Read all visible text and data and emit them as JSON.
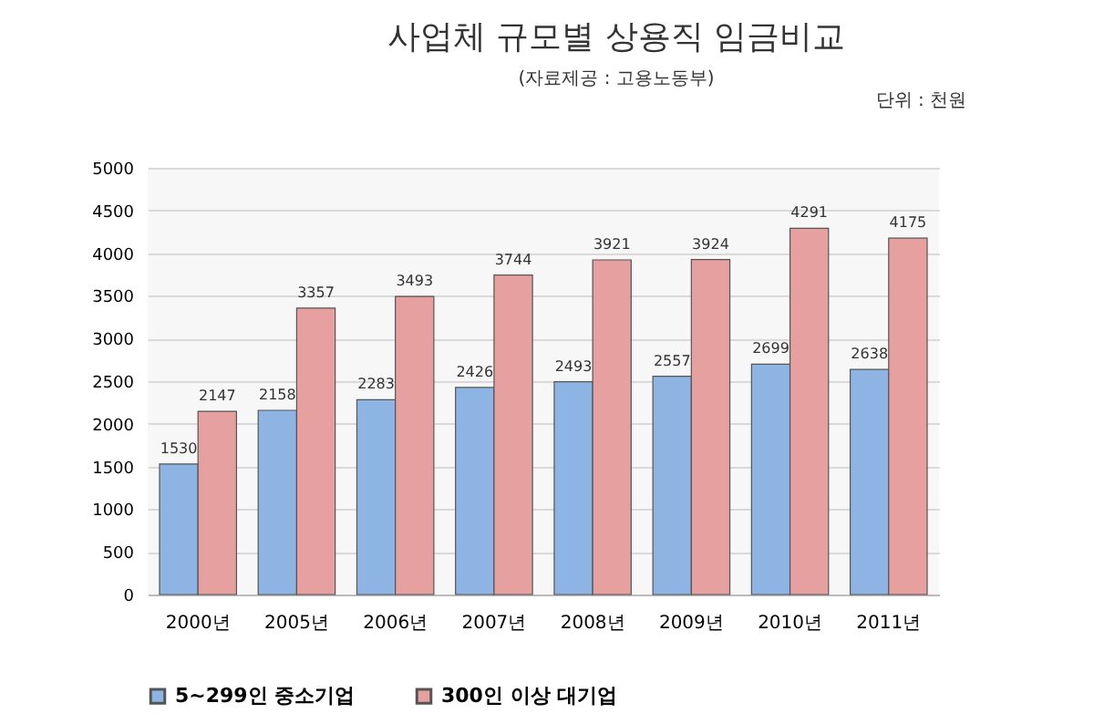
{
  "chart_data": {
    "type": "bar",
    "title": "사업체 규모별 상용직 임금비교",
    "subtitle": "(자료제공 : 고용노동부)",
    "annotations": [
      "단위 : 천원"
    ],
    "categories": [
      "2000년",
      "2005년",
      "2006년",
      "2007년",
      "2008년",
      "2009년",
      "2010년",
      "2011년"
    ],
    "series": [
      {
        "name": "5~299인 중소기업",
        "color": "#8db4e2",
        "values": [
          1530,
          2158,
          2283,
          2426,
          2493,
          2557,
          2699,
          2638
        ]
      },
      {
        "name": "300인 이상 대기업",
        "color": "#e6a0a0",
        "values": [
          2147,
          3357,
          3493,
          3744,
          3921,
          3924,
          4291,
          4175
        ]
      }
    ],
    "ylim": [
      0,
      5000
    ],
    "yticks": [
      0,
      500,
      1000,
      1500,
      2000,
      2500,
      3000,
      3500,
      4000,
      4500,
      5000
    ],
    "grid": "y",
    "legend": "bottom",
    "data_labels": true
  }
}
